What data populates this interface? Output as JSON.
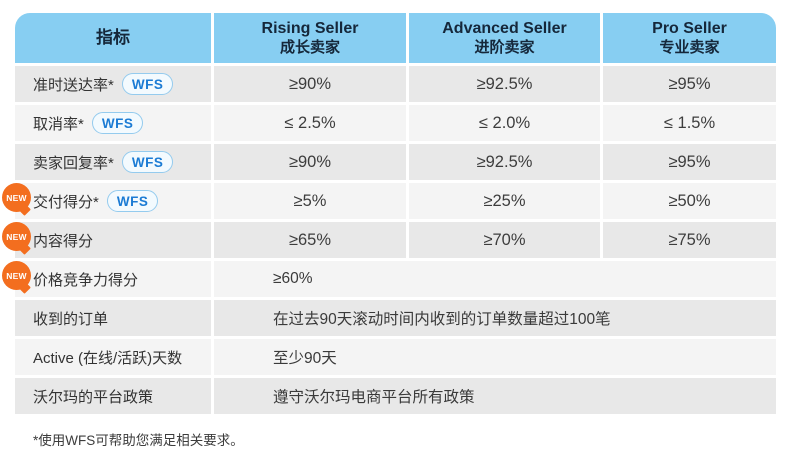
{
  "chart_data": {
    "type": "table",
    "title": "",
    "columns": [
      {
        "en": "",
        "zh": "指标"
      },
      {
        "en": "Rising Seller",
        "zh": "成长卖家"
      },
      {
        "en": "Advanced Seller",
        "zh": "进阶卖家"
      },
      {
        "en": "Pro Seller",
        "zh": "专业卖家"
      }
    ],
    "rows": [
      {
        "label": "准时送达率*",
        "wfs": true,
        "new": false,
        "values": [
          "≥90%",
          "≥92.5%",
          "≥95%"
        ]
      },
      {
        "label": "取消率*",
        "wfs": true,
        "new": false,
        "values": [
          "≤ 2.5%",
          "≤ 2.0%",
          "≤ 1.5%"
        ]
      },
      {
        "label": "卖家回复率*",
        "wfs": true,
        "new": false,
        "values": [
          "≥90%",
          "≥92.5%",
          "≥95%"
        ]
      },
      {
        "label": "交付得分*",
        "wfs": true,
        "new": true,
        "values": [
          "≥5%",
          "≥25%",
          "≥50%"
        ]
      },
      {
        "label": "内容得分",
        "wfs": false,
        "new": true,
        "values": [
          "≥65%",
          "≥70%",
          "≥75%"
        ]
      },
      {
        "label": "价格竞争力得分",
        "wfs": false,
        "new": true,
        "merged": true,
        "value": "≥60%"
      },
      {
        "label": "收到的订单",
        "wfs": false,
        "new": false,
        "merged": true,
        "value": "在过去90天滚动时间内收到的订单数量超过100笔"
      },
      {
        "label": "Active (在线/活跃)天数",
        "wfs": false,
        "new": false,
        "merged": true,
        "value": "至少90天"
      },
      {
        "label": "沃尔玛的平台政策",
        "wfs": false,
        "new": false,
        "merged": true,
        "value": "遵守沃尔玛电商平台所有政策"
      }
    ]
  },
  "labels": {
    "wfs": "WFS",
    "new": "NEW"
  },
  "footnote": "*使用WFS可帮助您满足相关要求。",
  "colors": {
    "header_bg": "#87CEF2",
    "header_text": "#15273A",
    "row_dark": "#E8E8E8",
    "row_light": "#F4F4F4",
    "wfs_text": "#1B7BD4",
    "wfs_border": "#94CBEE",
    "new_badge": "#F36E1F",
    "body_text": "#333333"
  }
}
